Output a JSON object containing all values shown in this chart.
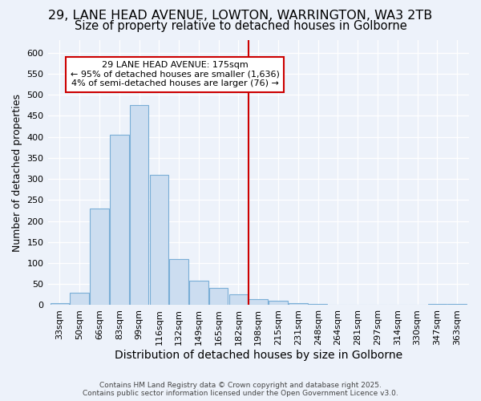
{
  "title1": "29, LANE HEAD AVENUE, LOWTON, WARRINGTON, WA3 2TB",
  "title2": "Size of property relative to detached houses in Golborne",
  "xlabel": "Distribution of detached houses by size in Golborne",
  "ylabel": "Number of detached properties",
  "bin_labels": [
    "33sqm",
    "50sqm",
    "66sqm",
    "83sqm",
    "99sqm",
    "116sqm",
    "132sqm",
    "149sqm",
    "165sqm",
    "182sqm",
    "198sqm",
    "215sqm",
    "231sqm",
    "248sqm",
    "264sqm",
    "281sqm",
    "297sqm",
    "314sqm",
    "330sqm",
    "347sqm",
    "363sqm"
  ],
  "bar_values": [
    5,
    30,
    230,
    405,
    475,
    310,
    110,
    58,
    40,
    25,
    15,
    10,
    5,
    2,
    0,
    0,
    0,
    0,
    0,
    2,
    2
  ],
  "bar_color": "#ccddf0",
  "bar_edge_color": "#7aaed6",
  "vline_x": 9.5,
  "vline_color": "#cc0000",
  "annotation_text": "29 LANE HEAD AVENUE: 175sqm\n← 95% of detached houses are smaller (1,636)\n4% of semi-detached houses are larger (76) →",
  "annotation_box_color": "#ffffff",
  "annotation_box_edge": "#cc0000",
  "ylim": [
    0,
    630
  ],
  "yticks": [
    0,
    50,
    100,
    150,
    200,
    250,
    300,
    350,
    400,
    450,
    500,
    550,
    600
  ],
  "background_color": "#edf2fa",
  "grid_color": "#c8d8ee",
  "footer_text": "Contains HM Land Registry data © Crown copyright and database right 2025.\nContains public sector information licensed under the Open Government Licence v3.0.",
  "title1_fontsize": 11.5,
  "title2_fontsize": 10.5,
  "xlabel_fontsize": 10,
  "ylabel_fontsize": 9,
  "tick_fontsize": 8,
  "annotation_fontsize": 8,
  "footer_fontsize": 6.5
}
